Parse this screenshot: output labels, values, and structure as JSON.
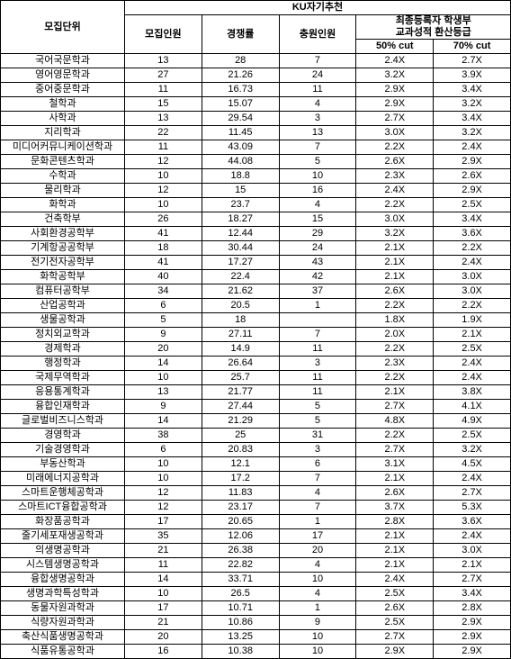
{
  "header": {
    "unit": "모집단위",
    "group": "KU자기추천",
    "col1": "모집인원",
    "col2": "경쟁률",
    "col3": "충원인원",
    "col4group": "최종등록자 학생부",
    "col4group2": "교과성적 환산등급",
    "cut50": "50%  cut",
    "cut70": "70%  cut"
  },
  "rows": [
    {
      "name": "국어국문학과",
      "r": "13",
      "c": "28",
      "f": "7",
      "p50": "2.4X",
      "p70": "2.7X"
    },
    {
      "name": "영어영문학과",
      "r": "27",
      "c": "21.26",
      "f": "24",
      "p50": "3.2X",
      "p70": "3.9X"
    },
    {
      "name": "중어중문학과",
      "r": "11",
      "c": "16.73",
      "f": "11",
      "p50": "2.9X",
      "p70": "3.4X"
    },
    {
      "name": "철학과",
      "r": "15",
      "c": "15.07",
      "f": "4",
      "p50": "2.9X",
      "p70": "3.2X"
    },
    {
      "name": "사학과",
      "r": "13",
      "c": "29.54",
      "f": "3",
      "p50": "2.7X",
      "p70": "3.4X"
    },
    {
      "name": "지리학과",
      "r": "22",
      "c": "11.45",
      "f": "13",
      "p50": "3.0X",
      "p70": "3.2X"
    },
    {
      "name": "미디어커뮤니케이션학과",
      "r": "11",
      "c": "43.09",
      "f": "7",
      "p50": "2.2X",
      "p70": "2.4X"
    },
    {
      "name": "문화콘텐츠학과",
      "r": "12",
      "c": "44.08",
      "f": "5",
      "p50": "2.6X",
      "p70": "2.9X"
    },
    {
      "name": "수학과",
      "r": "10",
      "c": "18.8",
      "f": "10",
      "p50": "2.3X",
      "p70": "2.6X"
    },
    {
      "name": "물리학과",
      "r": "12",
      "c": "15",
      "f": "16",
      "p50": "2.4X",
      "p70": "2.9X"
    },
    {
      "name": "화학과",
      "r": "10",
      "c": "23.7",
      "f": "4",
      "p50": "2.2X",
      "p70": "2.5X"
    },
    {
      "name": "건축학부",
      "r": "26",
      "c": "18.27",
      "f": "15",
      "p50": "3.0X",
      "p70": "3.4X"
    },
    {
      "name": "사회환경공학부",
      "r": "41",
      "c": "12.44",
      "f": "29",
      "p50": "3.2X",
      "p70": "3.6X"
    },
    {
      "name": "기계항공공학부",
      "r": "18",
      "c": "30.44",
      "f": "24",
      "p50": "2.1X",
      "p70": "2.2X"
    },
    {
      "name": "전기전자공학부",
      "r": "41",
      "c": "17.27",
      "f": "43",
      "p50": "2.1X",
      "p70": "2.4X"
    },
    {
      "name": "화학공학부",
      "r": "40",
      "c": "22.4",
      "f": "42",
      "p50": "2.1X",
      "p70": "3.0X"
    },
    {
      "name": "컴퓨터공학부",
      "r": "34",
      "c": "21.62",
      "f": "37",
      "p50": "2.6X",
      "p70": "3.0X"
    },
    {
      "name": "산업공학과",
      "r": "6",
      "c": "20.5",
      "f": "1",
      "p50": "2.2X",
      "p70": "2.2X"
    },
    {
      "name": "생물공학과",
      "r": "5",
      "c": "18",
      "f": "",
      "p50": "1.8X",
      "p70": "1.9X"
    },
    {
      "name": "정치외교학과",
      "r": "9",
      "c": "27.11",
      "f": "7",
      "p50": "2.0X",
      "p70": "2.1X"
    },
    {
      "name": "경제학과",
      "r": "20",
      "c": "14.9",
      "f": "11",
      "p50": "2.2X",
      "p70": "2.5X"
    },
    {
      "name": "행정학과",
      "r": "14",
      "c": "26.64",
      "f": "3",
      "p50": "2.3X",
      "p70": "2.4X"
    },
    {
      "name": "국제무역학과",
      "r": "10",
      "c": "25.7",
      "f": "11",
      "p50": "2.2X",
      "p70": "2.4X"
    },
    {
      "name": "응용통계학과",
      "r": "13",
      "c": "21.77",
      "f": "11",
      "p50": "2.1X",
      "p70": "3.8X"
    },
    {
      "name": "융합인재학과",
      "r": "9",
      "c": "27.44",
      "f": "5",
      "p50": "2.7X",
      "p70": "4.1X"
    },
    {
      "name": "글로벌비즈니스학과",
      "r": "14",
      "c": "21.29",
      "f": "5",
      "p50": "4.8X",
      "p70": "4.9X"
    },
    {
      "name": "경영학과",
      "r": "38",
      "c": "25",
      "f": "31",
      "p50": "2.2X",
      "p70": "2.5X"
    },
    {
      "name": "기술경영학과",
      "r": "6",
      "c": "20.83",
      "f": "3",
      "p50": "2.7X",
      "p70": "3.2X"
    },
    {
      "name": "부동산학과",
      "r": "10",
      "c": "12.1",
      "f": "6",
      "p50": "3.1X",
      "p70": "4.5X"
    },
    {
      "name": "미래에너지공학과",
      "r": "10",
      "c": "17.2",
      "f": "7",
      "p50": "2.1X",
      "p70": "2.4X"
    },
    {
      "name": "스마트운행체공학과",
      "r": "12",
      "c": "11.83",
      "f": "4",
      "p50": "2.6X",
      "p70": "2.7X"
    },
    {
      "name": "스마트ICT융합공학과",
      "r": "12",
      "c": "23.17",
      "f": "7",
      "p50": "3.7X",
      "p70": "5.3X"
    },
    {
      "name": "화장품공학과",
      "r": "17",
      "c": "20.65",
      "f": "1",
      "p50": "2.8X",
      "p70": "3.6X"
    },
    {
      "name": "줄기세포재생공학과",
      "r": "35",
      "c": "12.06",
      "f": "17",
      "p50": "2.1X",
      "p70": "2.4X"
    },
    {
      "name": "의생명공학과",
      "r": "21",
      "c": "26.38",
      "f": "20",
      "p50": "2.1X",
      "p70": "3.0X"
    },
    {
      "name": "시스템생명공학과",
      "r": "11",
      "c": "22.82",
      "f": "4",
      "p50": "2.1X",
      "p70": "2.1X"
    },
    {
      "name": "융합생명공학과",
      "r": "14",
      "c": "33.71",
      "f": "10",
      "p50": "2.4X",
      "p70": "2.7X"
    },
    {
      "name": "생명과학특성학과",
      "r": "10",
      "c": "26.5",
      "f": "4",
      "p50": "2.5X",
      "p70": "3.4X"
    },
    {
      "name": "동물자원과학과",
      "r": "17",
      "c": "10.71",
      "f": "1",
      "p50": "2.6X",
      "p70": "2.8X"
    },
    {
      "name": "식량자원과학과",
      "r": "21",
      "c": "10.86",
      "f": "9",
      "p50": "2.5X",
      "p70": "2.9X"
    },
    {
      "name": "축산식품생명공학과",
      "r": "20",
      "c": "13.25",
      "f": "10",
      "p50": "2.7X",
      "p70": "2.9X"
    },
    {
      "name": "식품유통공학과",
      "r": "16",
      "c": "10.38",
      "f": "10",
      "p50": "2.9X",
      "p70": "2.9X"
    }
  ]
}
